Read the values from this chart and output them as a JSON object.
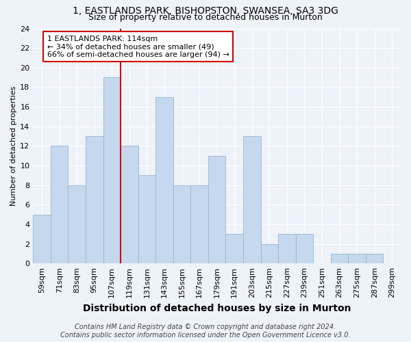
{
  "title1": "1, EASTLANDS PARK, BISHOPSTON, SWANSEA, SA3 3DG",
  "title2": "Size of property relative to detached houses in Murton",
  "xlabel": "Distribution of detached houses by size in Murton",
  "ylabel": "Number of detached properties",
  "categories": [
    "59sqm",
    "71sqm",
    "83sqm",
    "95sqm",
    "107sqm",
    "119sqm",
    "131sqm",
    "143sqm",
    "155sqm",
    "167sqm",
    "179sqm",
    "191sqm",
    "203sqm",
    "215sqm",
    "227sqm",
    "239sqm",
    "251sqm",
    "263sqm",
    "275sqm",
    "287sqm",
    "299sqm"
  ],
  "values": [
    5,
    12,
    8,
    13,
    19,
    12,
    9,
    17,
    8,
    8,
    11,
    3,
    13,
    2,
    3,
    3,
    0,
    1,
    1,
    1,
    0
  ],
  "bar_color": "#c5d8ee",
  "bar_edge_color": "#9ab5d0",
  "vline_x_index": 5,
  "annotation_line1": "1 EASTLANDS PARK: 114sqm",
  "annotation_line2": "← 34% of detached houses are smaller (49)",
  "annotation_line3": "66% of semi-detached houses are larger (94) →",
  "annotation_box_color": "#ffffff",
  "annotation_border_color": "#cc0000",
  "vline_color": "#cc0000",
  "ylim": [
    0,
    24
  ],
  "yticks": [
    0,
    2,
    4,
    6,
    8,
    10,
    12,
    14,
    16,
    18,
    20,
    22,
    24
  ],
  "footer1": "Contains HM Land Registry data © Crown copyright and database right 2024.",
  "footer2": "Contains public sector information licensed under the Open Government Licence v3.0.",
  "background_color": "#eef2f9",
  "grid_color": "#ffffff",
  "title1_fontsize": 10,
  "title2_fontsize": 9,
  "xlabel_fontsize": 10,
  "ylabel_fontsize": 8,
  "tick_fontsize": 8,
  "annot_fontsize": 8,
  "footer_fontsize": 7
}
